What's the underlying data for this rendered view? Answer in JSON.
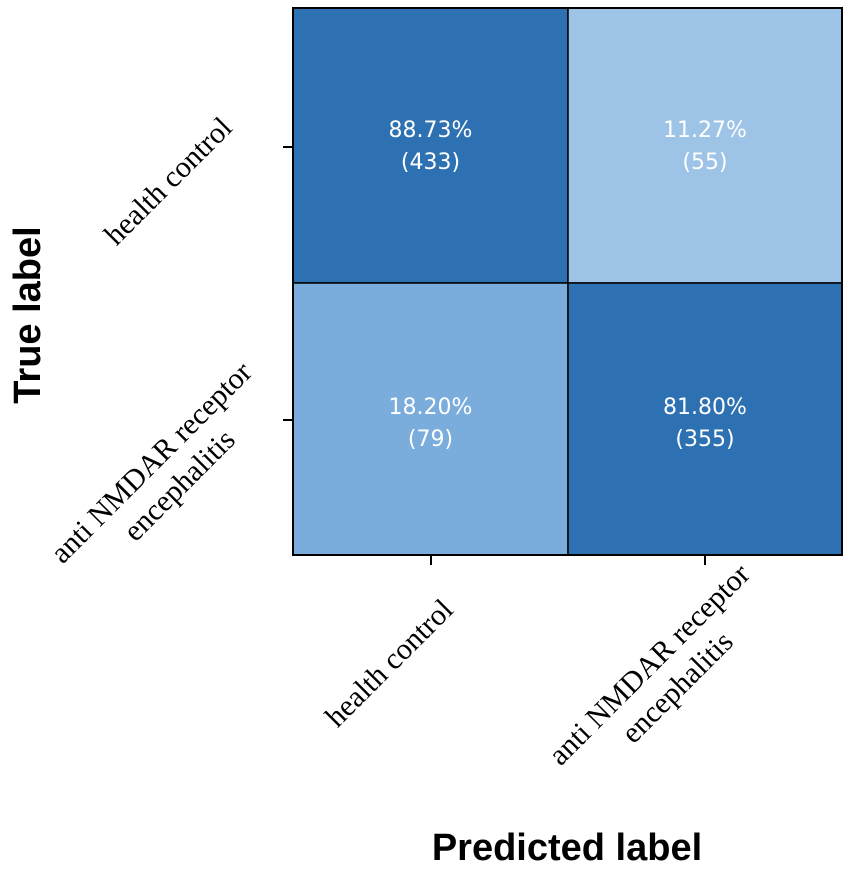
{
  "chart_data": {
    "type": "heatmap",
    "xlabel": "Predicted label",
    "ylabel": "True label",
    "x_categories": [
      [
        "health control"
      ],
      [
        "anti NMDAR receptor",
        "encephalitis"
      ]
    ],
    "y_categories": [
      [
        "health control"
      ],
      [
        "anti NMDAR receptor",
        "encephalitis"
      ]
    ],
    "cells": [
      [
        {
          "percent": "88.73%",
          "count": "(433)",
          "value": 88.73
        },
        {
          "percent": "11.27%",
          "count": "(55)",
          "value": 11.27
        }
      ],
      [
        {
          "percent": "18.20%",
          "count": "(79)",
          "value": 18.2
        },
        {
          "percent": "81.80%",
          "count": "(355)",
          "value": 81.8
        }
      ]
    ],
    "colors": {
      "high": "#2e71b3",
      "low_light": "#9dc3e6",
      "low_mid": "#7aacdc",
      "text": "#ffffff"
    }
  }
}
